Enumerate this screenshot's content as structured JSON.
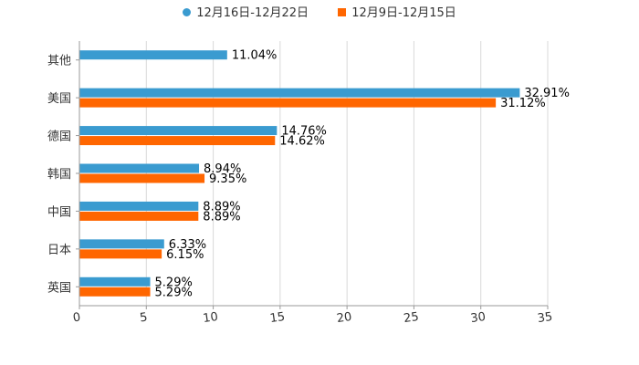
{
  "chart_data": {
    "type": "bar",
    "orientation": "horizontal",
    "categories": [
      "其他",
      "美国",
      "德国",
      "韩国",
      "中国",
      "日本",
      "英国"
    ],
    "series": [
      {
        "name": "12月16日-12月22日",
        "color": "#3a9bd0",
        "marker": "circle",
        "values": [
          11.04,
          32.91,
          14.76,
          8.94,
          8.89,
          6.33,
          5.29
        ],
        "labels": [
          "11.04%",
          "32.91%",
          "14.76%",
          "8.94%",
          "8.89%",
          "6.33%",
          "5.29%"
        ]
      },
      {
        "name": "12月9日-12月15日",
        "color": "#ff6600",
        "marker": "square",
        "values": [
          null,
          31.12,
          14.62,
          9.35,
          8.89,
          6.15,
          5.29
        ],
        "labels": [
          null,
          "31.12%",
          "14.62%",
          "9.35%",
          "8.89%",
          "6.15%",
          "5.29%"
        ]
      }
    ],
    "xlim": [
      0,
      35
    ],
    "xticks": [
      0,
      5,
      10,
      15,
      20,
      25,
      30,
      35
    ],
    "xtick_labels": [
      "0",
      "5",
      "10",
      "15",
      "20",
      "25",
      "30",
      "35"
    ],
    "grid": true,
    "legend_position": "top-center"
  }
}
